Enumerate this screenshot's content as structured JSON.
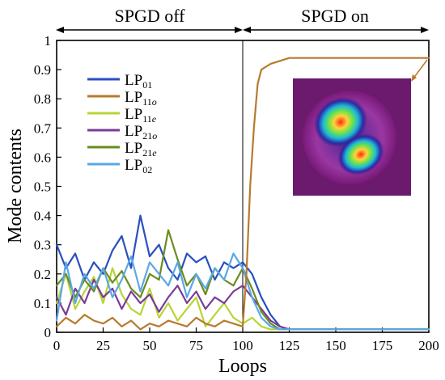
{
  "chart_data": {
    "type": "line",
    "title": "",
    "xlabel": "Loops",
    "ylabel": "Mode contents",
    "xlim": [
      0,
      200
    ],
    "ylim": [
      0,
      1
    ],
    "xticks": [
      0,
      25,
      50,
      75,
      100,
      125,
      150,
      175,
      200
    ],
    "yticks": [
      0,
      0.1,
      0.2,
      0.3,
      0.4,
      0.5,
      0.6,
      0.7,
      0.8,
      0.9,
      1
    ],
    "ytick_labels": [
      "0",
      "0.1",
      "0.2",
      "0.3",
      "0.4",
      "0.5",
      "0.6",
      "0.7",
      "0.8",
      "0.9",
      "1"
    ],
    "grid": false,
    "legend_position": "upper-left",
    "phases": [
      {
        "label": "SPGD off",
        "x_range": [
          0,
          100
        ]
      },
      {
        "label": "SPGD on",
        "x_range": [
          100,
          200
        ]
      }
    ],
    "inset": {
      "description_hidden": true,
      "points_to_x": 195
    },
    "series": [
      {
        "name_main": "LP",
        "name_sub": "01",
        "color": "#2a4fbf",
        "x": [
          0,
          5,
          10,
          15,
          20,
          25,
          30,
          35,
          40,
          45,
          50,
          55,
          60,
          65,
          70,
          75,
          80,
          85,
          90,
          95,
          100,
          105,
          110,
          115,
          120,
          125,
          150,
          175,
          200
        ],
        "y": [
          0.3,
          0.22,
          0.27,
          0.18,
          0.24,
          0.2,
          0.28,
          0.33,
          0.22,
          0.4,
          0.26,
          0.3,
          0.22,
          0.18,
          0.27,
          0.24,
          0.26,
          0.18,
          0.24,
          0.22,
          0.24,
          0.2,
          0.12,
          0.06,
          0.02,
          0.01,
          0.01,
          0.01,
          0.01
        ]
      },
      {
        "name_main": "LP",
        "name_sub": "11o",
        "color": "#b87a2e",
        "x": [
          0,
          5,
          10,
          15,
          20,
          25,
          30,
          35,
          40,
          45,
          50,
          55,
          60,
          65,
          70,
          75,
          80,
          85,
          90,
          95,
          100,
          102,
          104,
          106,
          108,
          110,
          115,
          120,
          125,
          130,
          150,
          175,
          195,
          200
        ],
        "y": [
          0.02,
          0.05,
          0.03,
          0.06,
          0.04,
          0.03,
          0.05,
          0.02,
          0.04,
          0.01,
          0.03,
          0.02,
          0.04,
          0.03,
          0.02,
          0.05,
          0.03,
          0.02,
          0.04,
          0.03,
          0.02,
          0.2,
          0.5,
          0.7,
          0.85,
          0.9,
          0.92,
          0.93,
          0.94,
          0.94,
          0.94,
          0.94,
          0.94,
          0.94
        ]
      },
      {
        "name_main": "LP",
        "name_sub": "11e",
        "color": "#b6d635",
        "x": [
          0,
          5,
          10,
          15,
          20,
          25,
          30,
          35,
          40,
          45,
          50,
          55,
          60,
          65,
          70,
          75,
          80,
          85,
          90,
          95,
          100,
          105,
          110,
          115,
          120,
          150,
          200
        ],
        "y": [
          0.1,
          0.2,
          0.08,
          0.14,
          0.19,
          0.1,
          0.22,
          0.13,
          0.08,
          0.06,
          0.15,
          0.05,
          0.1,
          0.04,
          0.08,
          0.12,
          0.02,
          0.06,
          0.1,
          0.05,
          0.03,
          0.05,
          0.02,
          0.01,
          0.01,
          0.01,
          0.01
        ]
      },
      {
        "name_main": "LP",
        "name_sub": "21o",
        "color": "#7a3b98",
        "x": [
          0,
          5,
          10,
          15,
          20,
          25,
          30,
          35,
          40,
          45,
          50,
          55,
          60,
          65,
          70,
          75,
          80,
          85,
          90,
          95,
          100,
          105,
          110,
          115,
          120,
          125,
          130,
          150,
          200
        ],
        "y": [
          0.12,
          0.06,
          0.15,
          0.1,
          0.18,
          0.12,
          0.15,
          0.08,
          0.14,
          0.1,
          0.13,
          0.07,
          0.12,
          0.16,
          0.1,
          0.14,
          0.08,
          0.12,
          0.1,
          0.14,
          0.16,
          0.12,
          0.08,
          0.04,
          0.02,
          0.01,
          0.01,
          0.01,
          0.01
        ]
      },
      {
        "name_main": "LP",
        "name_sub": "21e",
        "color": "#6b8c1f",
        "x": [
          0,
          5,
          10,
          15,
          20,
          25,
          30,
          35,
          40,
          45,
          50,
          55,
          60,
          65,
          70,
          75,
          80,
          85,
          90,
          95,
          100,
          105,
          110,
          115,
          120,
          150,
          200
        ],
        "y": [
          0.16,
          0.2,
          0.12,
          0.18,
          0.14,
          0.22,
          0.17,
          0.21,
          0.15,
          0.12,
          0.2,
          0.18,
          0.35,
          0.25,
          0.16,
          0.2,
          0.13,
          0.22,
          0.18,
          0.16,
          0.22,
          0.15,
          0.07,
          0.03,
          0.01,
          0.01,
          0.01
        ]
      },
      {
        "name_main": "LP",
        "name_sub": "02",
        "color": "#5aa8e6",
        "x": [
          0,
          5,
          10,
          15,
          20,
          25,
          30,
          35,
          40,
          45,
          50,
          55,
          60,
          65,
          70,
          75,
          80,
          85,
          90,
          95,
          100,
          105,
          110,
          115,
          120,
          150,
          200
        ],
        "y": [
          0.04,
          0.24,
          0.1,
          0.2,
          0.15,
          0.22,
          0.12,
          0.18,
          0.26,
          0.14,
          0.24,
          0.2,
          0.16,
          0.24,
          0.12,
          0.2,
          0.15,
          0.22,
          0.18,
          0.27,
          0.22,
          0.12,
          0.05,
          0.02,
          0.01,
          0.01,
          0.01
        ]
      }
    ]
  }
}
